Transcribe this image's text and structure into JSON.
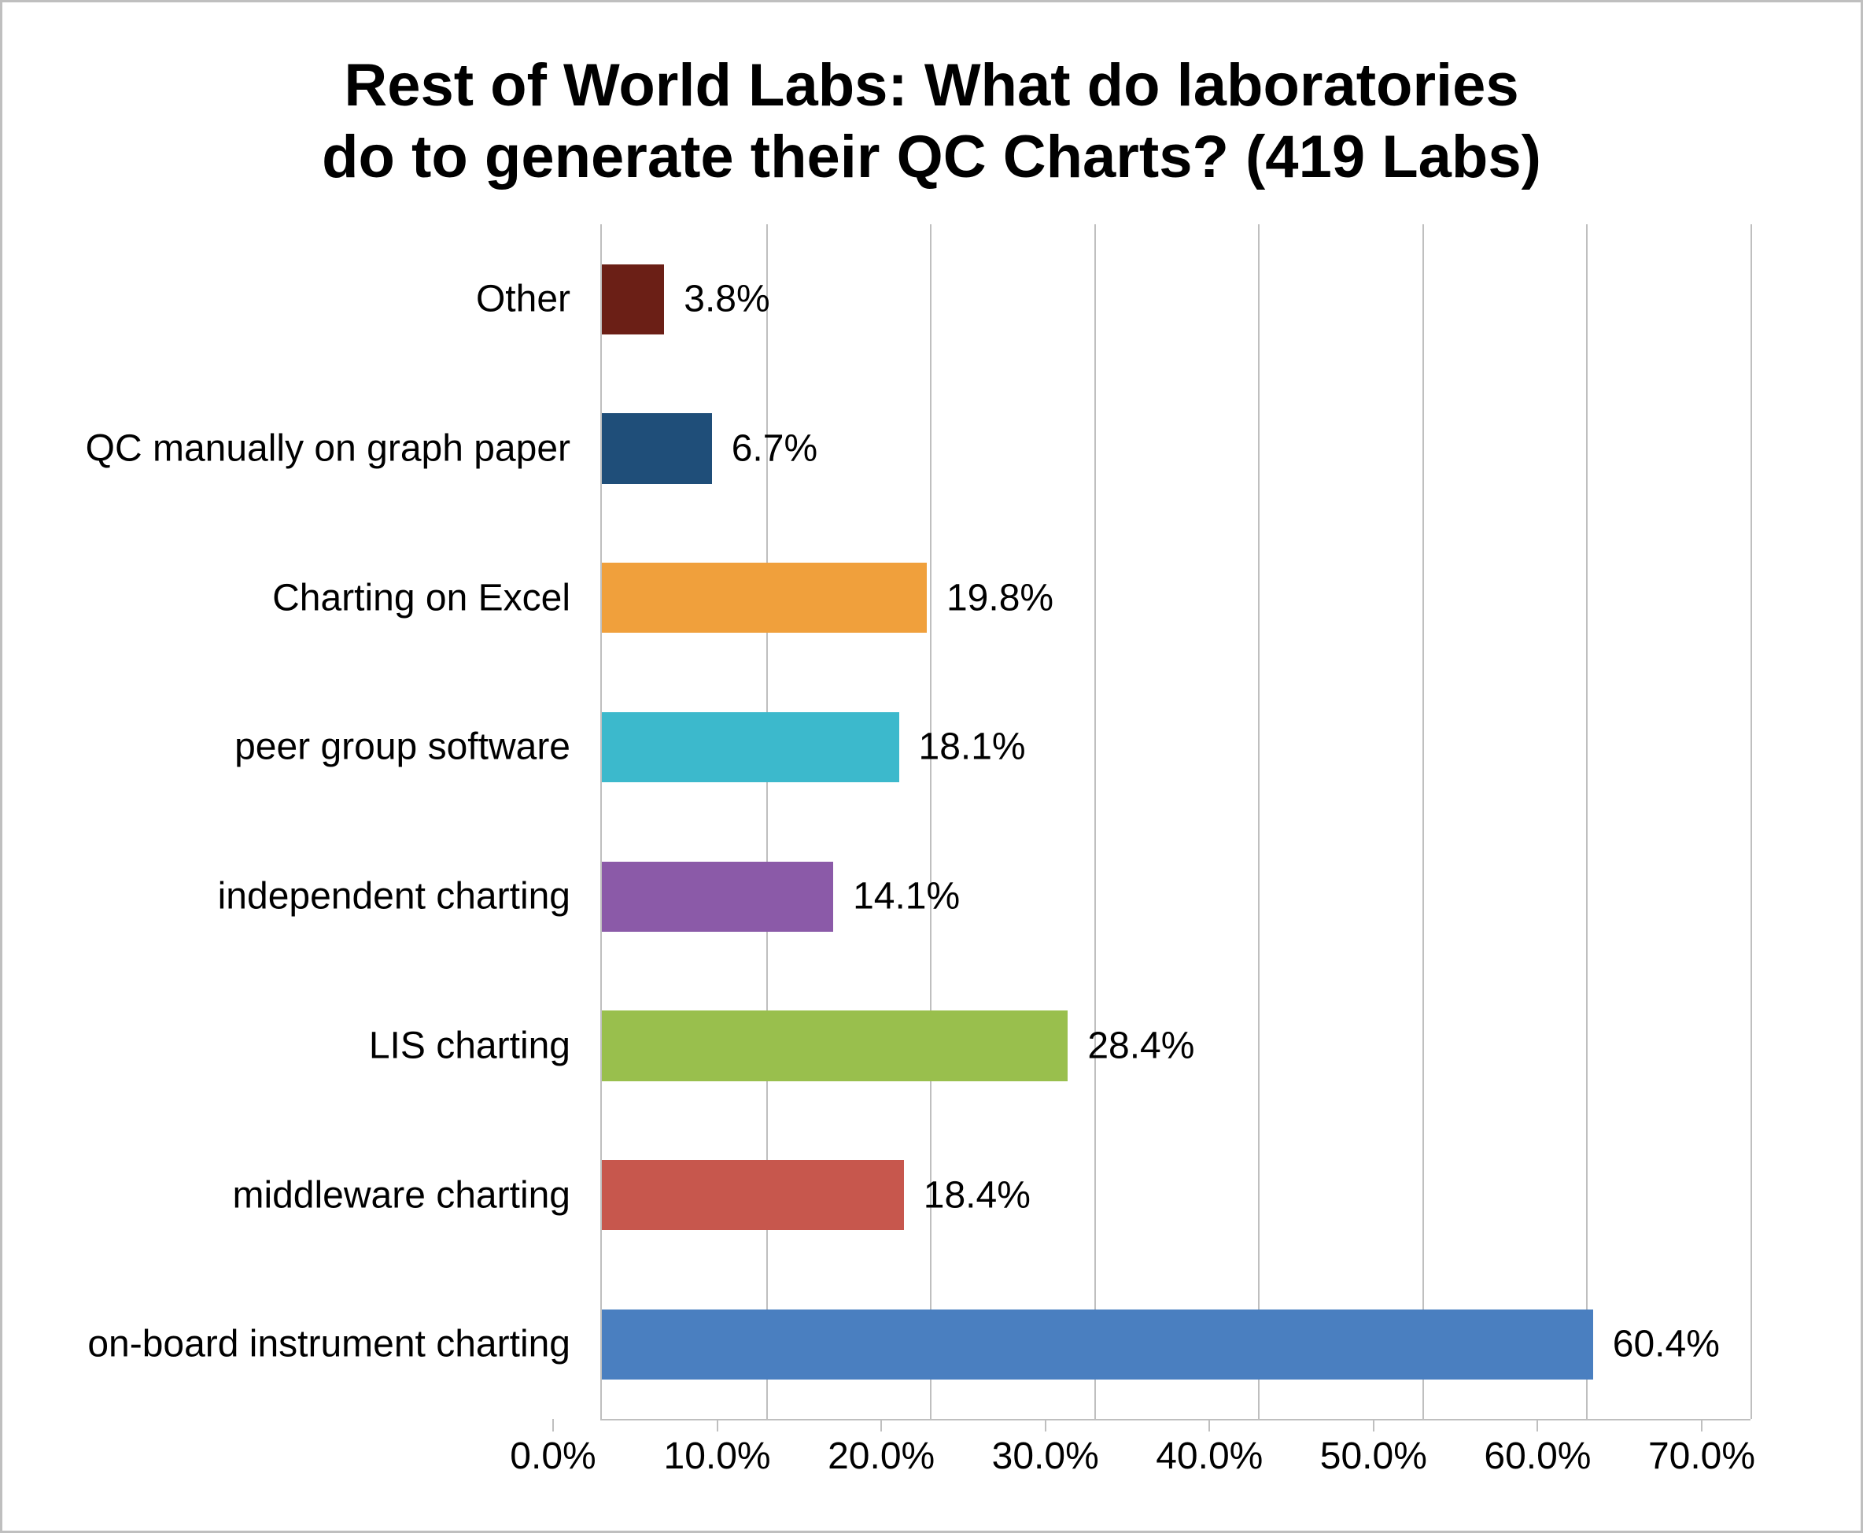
{
  "chart": {
    "type": "bar-horizontal",
    "title_line1": "Rest of World Labs:  What do laboratories",
    "title_line2": "do to generate their QC Charts? (419 Labs)",
    "title_fontsize": 76,
    "title_color": "#000000",
    "background_color": "#ffffff",
    "border_color": "#bfbfbf",
    "grid_color": "#bfbfbf",
    "axis_label_fontsize": 48,
    "axis_label_color": "#000000",
    "data_label_fontsize": 48,
    "data_label_color": "#000000",
    "xmin": 0.0,
    "xmax": 70.0,
    "xtick_step": 10.0,
    "xtick_labels": [
      "0.0%",
      "10.0%",
      "20.0%",
      "30.0%",
      "40.0%",
      "50.0%",
      "60.0%",
      "70.0%"
    ],
    "bar_height_ratio": 0.47,
    "bars": [
      {
        "category": "Other",
        "value": 3.8,
        "label": "3.8%",
        "color": "#6b1f16"
      },
      {
        "category": "QC manually on graph paper",
        "value": 6.7,
        "label": "6.7%",
        "color": "#1f4e79"
      },
      {
        "category": "Charting on Excel",
        "value": 19.8,
        "label": "19.8%",
        "color": "#f0a03c"
      },
      {
        "category": "peer group software",
        "value": 18.1,
        "label": "18.1%",
        "color": "#3cb9cc"
      },
      {
        "category": "independent charting",
        "value": 14.1,
        "label": "14.1%",
        "color": "#8b5aa8"
      },
      {
        "category": "LIS charting",
        "value": 28.4,
        "label": "28.4%",
        "color": "#99bf4d"
      },
      {
        "category": "middleware charting",
        "value": 18.4,
        "label": "18.4%",
        "color": "#c7574d"
      },
      {
        "category": "on-board instrument charting",
        "value": 60.4,
        "label": "60.4%",
        "color": "#4a7fc0"
      }
    ]
  }
}
